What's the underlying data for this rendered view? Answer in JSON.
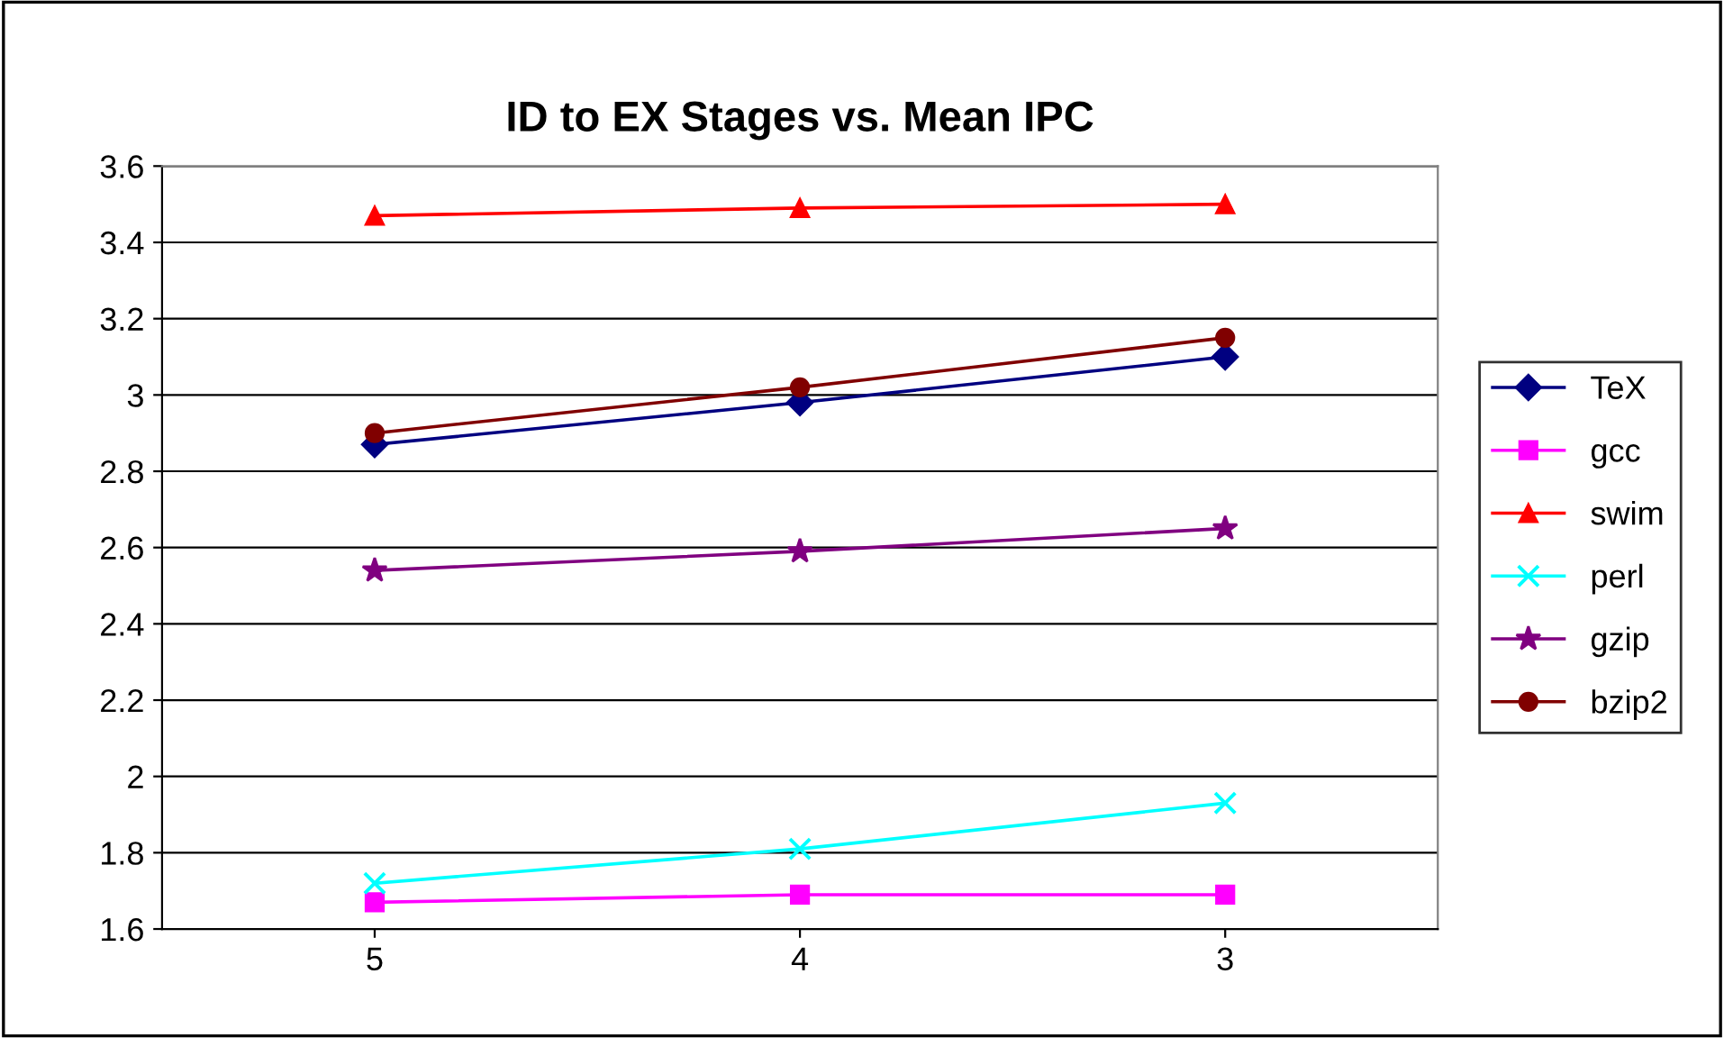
{
  "chart_data": {
    "type": "line",
    "title": "ID to EX Stages vs. Mean IPC",
    "categories": [
      "5",
      "4",
      "3"
    ],
    "series": [
      {
        "name": "TeX",
        "color": "#000080",
        "marker": "diamond",
        "values": [
          2.87,
          2.98,
          3.1
        ]
      },
      {
        "name": "gcc",
        "color": "#ff00ff",
        "marker": "square",
        "values": [
          1.67,
          1.69,
          1.69
        ]
      },
      {
        "name": "swim",
        "color": "#ff0000",
        "marker": "triangle",
        "values": [
          3.47,
          3.49,
          3.5
        ]
      },
      {
        "name": "perl",
        "color": "#00ffff",
        "marker": "cross",
        "values": [
          1.72,
          1.81,
          1.93
        ]
      },
      {
        "name": "gzip",
        "color": "#800080",
        "marker": "star",
        "values": [
          2.54,
          2.59,
          2.65
        ]
      },
      {
        "name": "bzip2",
        "color": "#800000",
        "marker": "circle",
        "values": [
          2.9,
          3.02,
          3.15
        ]
      }
    ],
    "ylim": [
      1.6,
      3.6
    ],
    "yticks": [
      1.6,
      1.8,
      2,
      2.2,
      2.4,
      2.6,
      2.8,
      3,
      3.2,
      3.4,
      3.6
    ],
    "grid": "y",
    "legend": "right"
  }
}
